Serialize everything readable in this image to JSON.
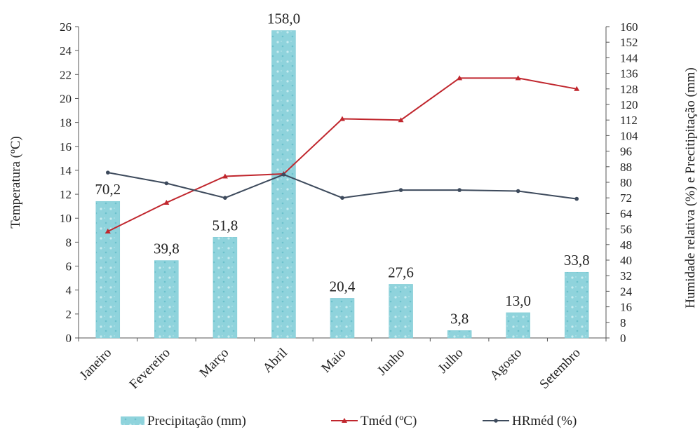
{
  "chart_data": {
    "type": "bar",
    "categories": [
      "Janeiro",
      "Fevereiro",
      "Março",
      "Abril",
      "Maio",
      "Junho",
      "Julho",
      "Agosto",
      "Setembro"
    ],
    "series": [
      {
        "name": "Precipitação (mm)",
        "type": "bar",
        "axis": "right",
        "color": "#8fd3dc",
        "values": [
          70.2,
          39.8,
          51.8,
          158.0,
          20.4,
          27.6,
          3.8,
          13.0,
          33.8
        ]
      },
      {
        "name": "Tméd (ºC)",
        "type": "line",
        "axis": "left",
        "color": "#c0262d",
        "values": [
          8.9,
          11.3,
          13.5,
          13.7,
          18.3,
          18.2,
          21.7,
          21.7,
          20.8
        ]
      },
      {
        "name": "HRméd (%)",
        "type": "line",
        "axis": "right",
        "color": "#3d4a5c",
        "values": [
          85,
          79.5,
          72,
          84,
          72,
          76,
          76,
          75.5,
          71.5
        ]
      }
    ],
    "data_labels": [
      "70,2",
      "39,8",
      "51,8",
      "158,0",
      "20,4",
      "27,6",
      "3,8",
      "13,0",
      "33,8"
    ],
    "ylabel_left": "Temperatura (ºC)",
    "ylabel_right": "Humidade relativa (%) e Precitipitação (mm)",
    "ylim_left": [
      0,
      26
    ],
    "ylim_right": [
      0,
      160
    ],
    "yticks_left": [
      "0",
      "2",
      "4",
      "6",
      "8",
      "10",
      "12",
      "14",
      "16",
      "18",
      "20",
      "22",
      "24",
      "26"
    ],
    "yticks_right": [
      "0",
      "8",
      "16",
      "24",
      "32",
      "40",
      "48",
      "56",
      "64",
      "72",
      "80",
      "88",
      "96",
      "104",
      "112",
      "120",
      "128",
      "136",
      "144",
      "152",
      "160"
    ],
    "grid": false,
    "legend_position": "bottom"
  }
}
